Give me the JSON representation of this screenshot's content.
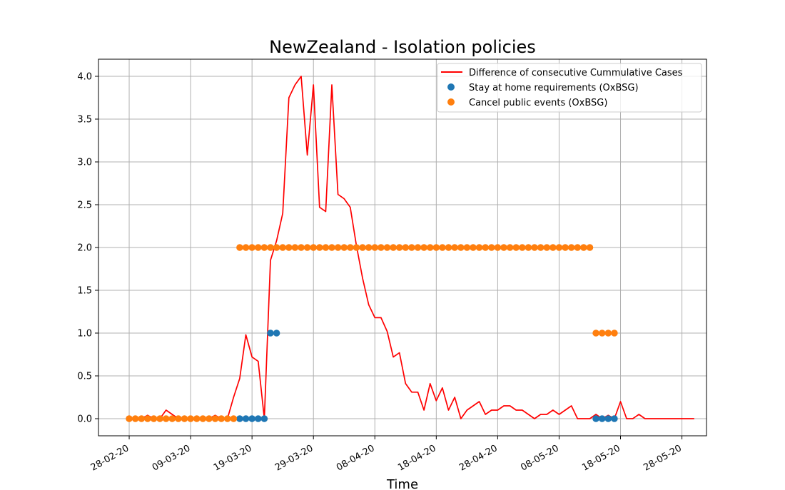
{
  "chart_data": {
    "type": "line",
    "title": "NewZealand - Isolation policies",
    "xlabel": "Time",
    "ylabel": "",
    "ylim": [
      -0.2,
      4.2
    ],
    "xlim": [
      "2020-02-23",
      "2020-06-01"
    ],
    "yticks": [
      0.0,
      0.5,
      1.0,
      1.5,
      2.0,
      2.5,
      3.0,
      3.5,
      4.0
    ],
    "ytick_labels": [
      "0.0",
      "0.5",
      "1.0",
      "1.5",
      "2.0",
      "2.5",
      "3.0",
      "3.5",
      "4.0"
    ],
    "xticks": [
      "2020-02-28",
      "2020-03-09",
      "2020-03-19",
      "2020-03-29",
      "2020-04-08",
      "2020-04-18",
      "2020-04-28",
      "2020-05-08",
      "2020-05-18",
      "2020-05-28"
    ],
    "xtick_labels": [
      "28-02-20",
      "09-03-20",
      "19-03-20",
      "29-03-20",
      "08-04-20",
      "18-04-20",
      "28-04-20",
      "08-05-20",
      "18-05-20",
      "28-05-20"
    ],
    "grid": true,
    "legend_position": "top-right",
    "colors": {
      "line": "#ff0000",
      "stay_home": "#1f77b4",
      "cancel_events": "#ff7f0e"
    },
    "series": [
      {
        "name": "Difference of consecutive Cummulative Cases",
        "kind": "line",
        "start": "2020-02-28",
        "values": [
          0,
          0,
          0,
          0.04,
          0,
          0,
          0.1,
          0.05,
          0,
          0,
          0,
          0,
          0,
          0,
          0.04,
          0,
          0,
          0.25,
          0.47,
          0.98,
          0.72,
          0.67,
          0,
          1.85,
          2.08,
          2.4,
          3.75,
          3.9,
          4.0,
          3.08,
          3.9,
          2.47,
          2.42,
          3.9,
          2.62,
          2.57,
          2.47,
          2.02,
          1.64,
          1.33,
          1.18,
          1.18,
          1.02,
          0.72,
          0.77,
          0.41,
          0.31,
          0.31,
          0.1,
          0.41,
          0.21,
          0.36,
          0.1,
          0.25,
          0,
          0.1,
          0.15,
          0.2,
          0.05,
          0.1,
          0.1,
          0.15,
          0.15,
          0.1,
          0.1,
          0.05,
          0,
          0.05,
          0.05,
          0.1,
          0.05,
          0.1,
          0.15,
          0,
          0,
          0,
          0.05,
          0,
          0.04,
          0,
          0.2,
          0,
          0,
          0.05,
          0,
          0,
          0,
          0,
          0,
          0,
          0,
          0,
          0
        ]
      },
      {
        "name": "Stay at home requirements (OxBSG)",
        "kind": "scatter",
        "points": [
          [
            "2020-03-17",
            0
          ],
          [
            "2020-03-18",
            0
          ],
          [
            "2020-03-19",
            0
          ],
          [
            "2020-03-20",
            0
          ],
          [
            "2020-03-21",
            0
          ],
          [
            "2020-03-22",
            1
          ],
          [
            "2020-03-23",
            1
          ],
          [
            "2020-05-14",
            0
          ],
          [
            "2020-05-15",
            0
          ],
          [
            "2020-05-16",
            0
          ],
          [
            "2020-05-17",
            0
          ]
        ]
      },
      {
        "name": "Cancel public events (OxBSG)",
        "kind": "scatter",
        "start_zero": "2020-02-28",
        "end_zero": "2020-03-16",
        "start_two": "2020-03-17",
        "end_two": "2020-05-13",
        "points_one": [
          [
            "2020-05-14",
            1
          ],
          [
            "2020-05-15",
            1
          ],
          [
            "2020-05-16",
            1
          ],
          [
            "2020-05-17",
            1
          ]
        ]
      }
    ]
  }
}
